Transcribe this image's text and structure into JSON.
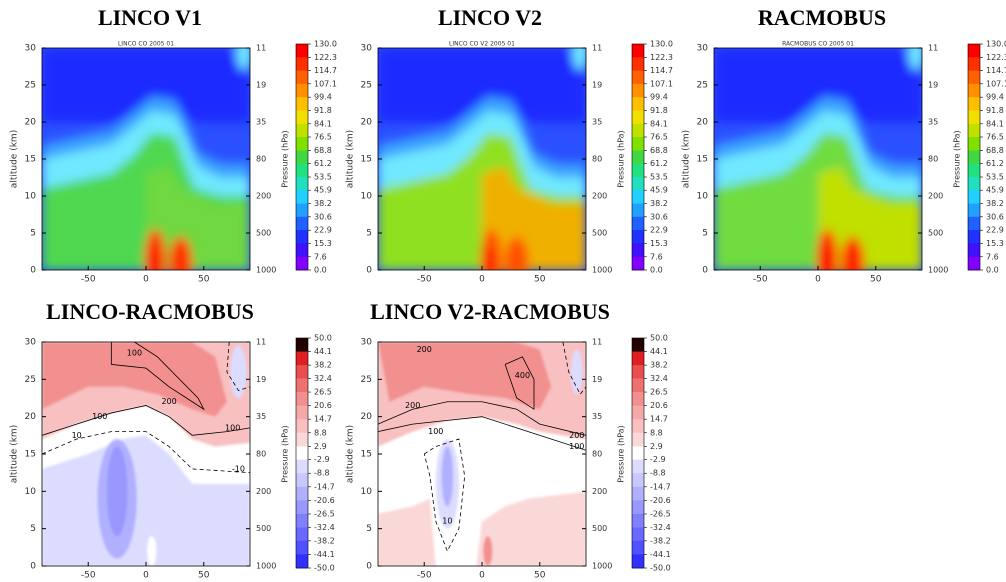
{
  "chart_data": [
    {
      "type": "contour",
      "title": "LINCO  V1",
      "subtitle": "LINCO CO 2005 01",
      "ylabel": "altitude (km)",
      "y2label": "Pressure (hPa)",
      "xlim": [
        -90,
        90
      ],
      "xticks": [
        -50,
        0,
        50
      ],
      "ylim": [
        0,
        30
      ],
      "yticks": [
        0,
        5,
        10,
        15,
        20,
        25,
        30
      ],
      "y2ticks": [
        11,
        19,
        35,
        80,
        200,
        500,
        1000
      ],
      "colorbar": {
        "colors": [
          "#ff0000",
          "#ff3000",
          "#ff6000",
          "#ff9000",
          "#ffc000",
          "#f0e000",
          "#c0e000",
          "#80e000",
          "#40d840",
          "#20e080",
          "#20e0c0",
          "#20d0ff",
          "#20a0ff",
          "#2060ff",
          "#2030ff",
          "#4010ff",
          "#8000ff"
        ],
        "ticks": [
          {
            "value": 130,
            "label": "130.0"
          },
          122.3,
          114.7,
          107.1,
          99.4,
          91.8,
          84.1,
          76.5,
          68.8,
          61.2,
          53.5,
          45.9,
          38.2,
          30.6,
          22.9,
          15.3,
          7.6,
          {
            "value": 0,
            "label": "0.0"
          }
        ]
      }
    },
    {
      "type": "contour",
      "title": "LINCO  V2",
      "subtitle": "LINCO CO V2 2005 01",
      "ylabel": "altitude (km)",
      "y2label": "Pressure (hPa)",
      "xlim": [
        -90,
        90
      ],
      "xticks": [
        -50,
        0,
        50
      ],
      "ylim": [
        0,
        30
      ],
      "yticks": [
        0,
        5,
        10,
        15,
        20,
        25,
        30
      ],
      "y2ticks": [
        11,
        19,
        35,
        80,
        200,
        500,
        1000
      ],
      "colorbar": {
        "colors": [
          "#ff0000",
          "#ff3000",
          "#ff6000",
          "#ff9000",
          "#ffc000",
          "#f0e000",
          "#c0e000",
          "#80e000",
          "#40d840",
          "#20e080",
          "#20e0c0",
          "#20d0ff",
          "#20a0ff",
          "#2060ff",
          "#2030ff",
          "#4010ff",
          "#8000ff"
        ],
        "ticks": [
          {
            "value": 130,
            "label": "130.0"
          },
          122.3,
          114.7,
          107.1,
          99.4,
          91.8,
          84.1,
          76.5,
          68.8,
          61.2,
          53.5,
          45.9,
          38.2,
          30.6,
          22.9,
          15.3,
          7.6,
          {
            "value": 0,
            "label": "0.0"
          }
        ]
      }
    },
    {
      "type": "contour",
      "title": "RACMOBUS",
      "subtitle": "RACMOBUS CO 2005 01",
      "ylabel": "altitude (km)",
      "y2label": "Pressure (hPa)",
      "xlim": [
        -90,
        90
      ],
      "xticks": [
        -50,
        0,
        50
      ],
      "ylim": [
        0,
        30
      ],
      "yticks": [
        0,
        5,
        10,
        15,
        20,
        25,
        30
      ],
      "y2ticks": [
        11,
        19,
        35,
        80,
        200,
        500,
        1000
      ],
      "colorbar": {
        "colors": [
          "#ff0000",
          "#ff3000",
          "#ff6000",
          "#ff9000",
          "#ffc000",
          "#f0e000",
          "#c0e000",
          "#80e000",
          "#40d840",
          "#20e080",
          "#20e0c0",
          "#20d0ff",
          "#20a0ff",
          "#2060ff",
          "#2030ff",
          "#4010ff",
          "#8000ff"
        ],
        "ticks": [
          {
            "value": 130,
            "label": "130.0"
          },
          122.3,
          114.7,
          107.1,
          99.4,
          91.8,
          84.1,
          76.5,
          68.8,
          61.2,
          53.5,
          45.9,
          38.2,
          30.6,
          22.9,
          15.3,
          7.6,
          {
            "value": 0,
            "label": "0.0"
          }
        ]
      }
    },
    {
      "type": "contour",
      "title": "LINCO-RACMOBUS",
      "ylabel": "altitude (km)",
      "y2label": "Pressure (hPa)",
      "xlim": [
        -90,
        90
      ],
      "xticks": [
        -50,
        0,
        50
      ],
      "ylim": [
        0,
        30
      ],
      "yticks": [
        0,
        5,
        10,
        15,
        20,
        25,
        30
      ],
      "y2ticks": [
        11,
        19,
        35,
        80,
        200,
        500,
        1000
      ],
      "contour_labels": [
        100,
        200,
        100,
        10,
        100,
        -10
      ],
      "colorbar": {
        "colors": [
          "#200000",
          "#e02020",
          "#e85050",
          "#ee7070",
          "#f29090",
          "#f5a8a8",
          "#f8c0c0",
          "#fbd8d8",
          "#ffffff",
          "#dcdcff",
          "#c8c8ff",
          "#b0b0ff",
          "#9898ff",
          "#8080ff",
          "#6868ff",
          "#5050ff",
          "#3030ff"
        ],
        "ticks": [
          {
            "value": 50,
            "label": "50.0"
          },
          44.1,
          38.2,
          32.4,
          26.5,
          20.6,
          14.7,
          8.8,
          2.9,
          -2.9,
          -8.8,
          -14.7,
          -20.6,
          -26.5,
          -32.4,
          -38.2,
          -44.1,
          {
            "value": -50,
            "label": "-50.0"
          }
        ]
      }
    },
    {
      "type": "contour",
      "title": "LINCO V2-RACMOBUS",
      "ylabel": "altitude (km)",
      "y2label": "Pressure (hPa)",
      "xlim": [
        -90,
        90
      ],
      "xticks": [
        -50,
        0,
        50
      ],
      "ylim": [
        0,
        30
      ],
      "yticks": [
        0,
        5,
        10,
        15,
        20,
        25,
        30
      ],
      "y2ticks": [
        11,
        19,
        35,
        80,
        200,
        500,
        1000
      ],
      "contour_labels": [
        200,
        400,
        200,
        100,
        200,
        100,
        10
      ],
      "colorbar": {
        "colors": [
          "#200000",
          "#e02020",
          "#e85050",
          "#ee7070",
          "#f29090",
          "#f5a8a8",
          "#f8c0c0",
          "#fbd8d8",
          "#ffffff",
          "#dcdcff",
          "#c8c8ff",
          "#b0b0ff",
          "#9898ff",
          "#8080ff",
          "#6868ff",
          "#5050ff",
          "#3030ff"
        ],
        "ticks": [
          {
            "value": 50,
            "label": "50.0"
          },
          44.1,
          38.2,
          32.4,
          26.5,
          20.6,
          14.7,
          8.8,
          2.9,
          -2.9,
          -8.8,
          -14.7,
          -20.6,
          -26.5,
          -32.4,
          -38.2,
          -44.1,
          {
            "value": -50,
            "label": "-50.0"
          }
        ]
      }
    }
  ]
}
